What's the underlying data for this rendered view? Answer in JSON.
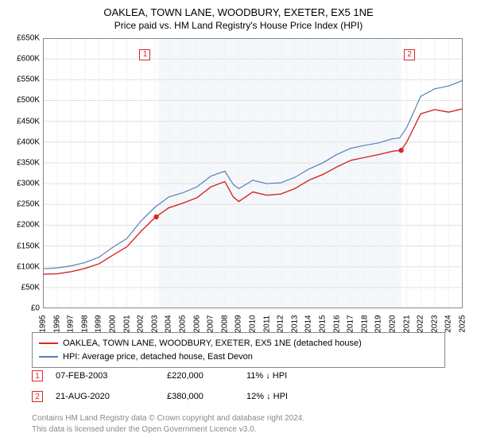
{
  "title": "OAKLEA, TOWN LANE, WOODBURY, EXETER, EX5 1NE",
  "subtitle": "Price paid vs. HM Land Registry's House Price Index (HPI)",
  "chart": {
    "type": "line",
    "background_color": "#ffffff",
    "grid_color": "#e0e0e0",
    "border_color": "#888888",
    "highlight_band": {
      "x_from": 8.25,
      "x_to": 25.6,
      "fill": "#f4f8fb"
    },
    "x": {
      "min": 0,
      "max": 30,
      "ticks": [
        0,
        1,
        2,
        3,
        4,
        5,
        6,
        7,
        8,
        9,
        10,
        11,
        12,
        13,
        14,
        15,
        16,
        17,
        18,
        19,
        20,
        21,
        22,
        23,
        24,
        25,
        26,
        27,
        28,
        29,
        30
      ],
      "labels": [
        "1995",
        "1996",
        "1997",
        "1998",
        "1999",
        "2000",
        "2001",
        "2002",
        "2003",
        "2004",
        "2005",
        "2006",
        "2007",
        "2008",
        "2009",
        "2010",
        "2011",
        "2012",
        "2013",
        "2014",
        "2015",
        "2016",
        "2017",
        "2018",
        "2019",
        "2020",
        "2021",
        "2022",
        "2023",
        "2024",
        "2025"
      ]
    },
    "y": {
      "min": 0,
      "max": 650000,
      "ticks": [
        0,
        50000,
        100000,
        150000,
        200000,
        250000,
        300000,
        350000,
        400000,
        450000,
        500000,
        550000,
        600000,
        650000
      ],
      "labels": [
        "£0",
        "£50K",
        "£100K",
        "£150K",
        "£200K",
        "£250K",
        "£300K",
        "£350K",
        "£400K",
        "£450K",
        "£500K",
        "£550K",
        "£600K",
        "£650K"
      ]
    },
    "series": [
      {
        "name": "hpi",
        "label": "HPI: Average price, detached house, East Devon",
        "color": "#5a7fb5",
        "width": 1.2,
        "points": [
          [
            0,
            95000
          ],
          [
            1,
            97000
          ],
          [
            2,
            102000
          ],
          [
            3,
            110000
          ],
          [
            4,
            123000
          ],
          [
            5,
            147000
          ],
          [
            6,
            168000
          ],
          [
            7,
            210000
          ],
          [
            8,
            243000
          ],
          [
            9,
            268000
          ],
          [
            10,
            278000
          ],
          [
            11,
            292000
          ],
          [
            12,
            318000
          ],
          [
            13,
            330000
          ],
          [
            13.6,
            298000
          ],
          [
            14,
            288000
          ],
          [
            15,
            308000
          ],
          [
            16,
            300000
          ],
          [
            17,
            302000
          ],
          [
            18,
            315000
          ],
          [
            19,
            335000
          ],
          [
            20,
            350000
          ],
          [
            21,
            370000
          ],
          [
            22,
            385000
          ],
          [
            23,
            392000
          ],
          [
            24,
            398000
          ],
          [
            25,
            408000
          ],
          [
            25.5,
            410000
          ],
          [
            26,
            435000
          ],
          [
            27,
            510000
          ],
          [
            28,
            528000
          ],
          [
            29,
            535000
          ],
          [
            30,
            548000
          ]
        ]
      },
      {
        "name": "property",
        "label": "OAKLEA, TOWN LANE, WOODBURY, EXETER, EX5 1NE (detached house)",
        "color": "#d62728",
        "width": 1.4,
        "points": [
          [
            0,
            82000
          ],
          [
            1,
            83000
          ],
          [
            2,
            88000
          ],
          [
            3,
            96000
          ],
          [
            4,
            107000
          ],
          [
            5,
            128000
          ],
          [
            6,
            148000
          ],
          [
            7,
            185000
          ],
          [
            8,
            218000
          ],
          [
            9,
            242000
          ],
          [
            10,
            253000
          ],
          [
            11,
            266000
          ],
          [
            12,
            292000
          ],
          [
            13,
            305000
          ],
          [
            13.6,
            268000
          ],
          [
            14,
            257000
          ],
          [
            15,
            280000
          ],
          [
            16,
            272000
          ],
          [
            17,
            275000
          ],
          [
            18,
            288000
          ],
          [
            19,
            308000
          ],
          [
            20,
            322000
          ],
          [
            21,
            340000
          ],
          [
            22,
            356000
          ],
          [
            23,
            363000
          ],
          [
            24,
            370000
          ],
          [
            25,
            378000
          ],
          [
            25.6,
            380000
          ],
          [
            26,
            400000
          ],
          [
            27,
            468000
          ],
          [
            28,
            478000
          ],
          [
            29,
            472000
          ],
          [
            30,
            480000
          ]
        ]
      }
    ],
    "markers": [
      {
        "n": "1",
        "x": 8.1,
        "y": 220000,
        "color": "#d62728"
      },
      {
        "n": "2",
        "x": 25.6,
        "y": 380000,
        "color": "#d62728"
      }
    ],
    "marker_boxes": [
      {
        "n": "1",
        "x": 7.3,
        "y_top": 0.04,
        "color": "#d62728"
      },
      {
        "n": "2",
        "x": 26.2,
        "y_top": 0.04,
        "color": "#d62728"
      }
    ]
  },
  "legend": {
    "rows": [
      {
        "color": "#d62728",
        "label": "OAKLEA, TOWN LANE, WOODBURY, EXETER, EX5 1NE (detached house)"
      },
      {
        "color": "#5a7fb5",
        "label": "HPI: Average price, detached house, East Devon"
      }
    ]
  },
  "transactions": [
    {
      "n": "1",
      "color": "#d62728",
      "date": "07-FEB-2003",
      "price": "£220,000",
      "pct": "11% ↓ HPI"
    },
    {
      "n": "2",
      "color": "#d62728",
      "date": "21-AUG-2020",
      "price": "£380,000",
      "pct": "12% ↓ HPI"
    }
  ],
  "footer_line1": "Contains HM Land Registry data © Crown copyright and database right 2024.",
  "footer_line2": "This data is licensed under the Open Government Licence v3.0."
}
